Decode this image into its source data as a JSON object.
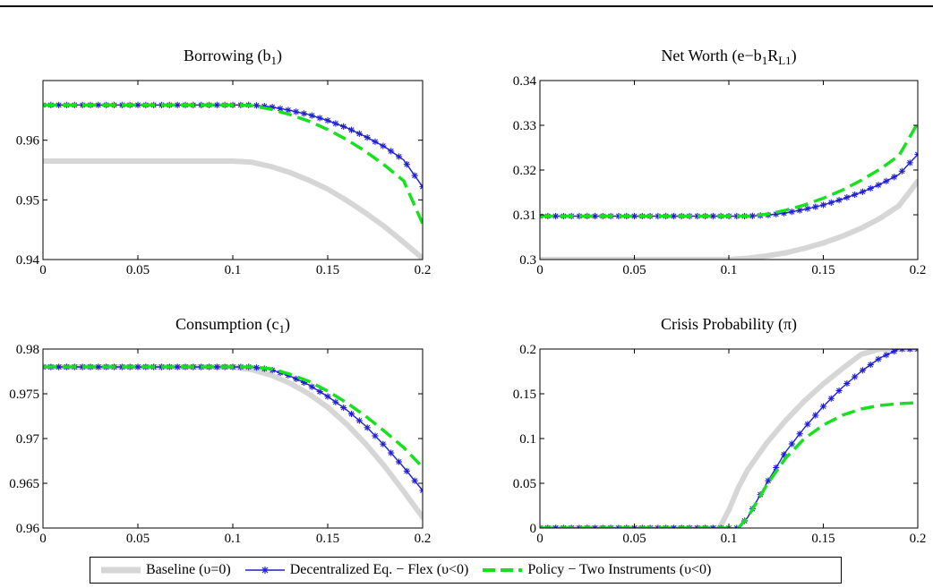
{
  "colors": {
    "baseline": "#d6d6d6",
    "decentralized": "#1f1fd6",
    "policy": "#16e11c"
  },
  "chart_data": [
    {
      "type": "line",
      "title": "Borrowing (b1)",
      "title_parts": [
        "Borrowing (b",
        "1",
        ")"
      ],
      "xlim": [
        0,
        0.2
      ],
      "ylim": [
        0.94,
        0.97
      ],
      "xticks": [
        "0",
        "0.05",
        "0.1",
        "0.15",
        "0.2"
      ],
      "yticks": [
        "0.94",
        "0.95",
        "0.96"
      ],
      "ytick_values": [
        0.94,
        0.95,
        0.96
      ],
      "x": [
        0,
        0.02,
        0.04,
        0.06,
        0.08,
        0.1,
        0.11,
        0.12,
        0.13,
        0.14,
        0.15,
        0.16,
        0.17,
        0.18,
        0.19,
        0.2
      ],
      "series": [
        {
          "name": "Baseline (υ=0)",
          "values": [
            0.9565,
            0.9565,
            0.9565,
            0.9565,
            0.9565,
            0.9565,
            0.9563,
            0.9556,
            0.9546,
            0.9533,
            0.9518,
            0.9499,
            0.9478,
            0.9455,
            0.9429,
            0.9402
          ]
        },
        {
          "name": "Decentralized Eq. − Flex (υ<0)",
          "values": [
            0.9659,
            0.9659,
            0.9659,
            0.9659,
            0.9659,
            0.9659,
            0.9659,
            0.9656,
            0.965,
            0.9643,
            0.9633,
            0.9621,
            0.9606,
            0.9589,
            0.9567,
            0.9522
          ]
        },
        {
          "name": "Policy − Two Instruments (υ<0)",
          "values": [
            0.9659,
            0.9659,
            0.9659,
            0.9659,
            0.9659,
            0.9659,
            0.9658,
            0.9652,
            0.9643,
            0.9632,
            0.9618,
            0.9601,
            0.9581,
            0.9558,
            0.9532,
            0.946
          ]
        }
      ]
    },
    {
      "type": "line",
      "title": "Net Worth (e−b1RL1)",
      "title_parts": [
        "Net Worth (e−b",
        "1",
        "R",
        "L1",
        ")"
      ],
      "xlim": [
        0,
        0.2
      ],
      "ylim": [
        0.3,
        0.34
      ],
      "xticks": [
        "0",
        "0.05",
        "0.1",
        "0.15",
        "0.2"
      ],
      "yticks": [
        "0.3",
        "0.31",
        "0.32",
        "0.33",
        "0.34"
      ],
      "ytick_values": [
        0.3,
        0.31,
        0.32,
        0.33,
        0.34
      ],
      "x": [
        0,
        0.02,
        0.04,
        0.06,
        0.08,
        0.1,
        0.11,
        0.12,
        0.13,
        0.14,
        0.15,
        0.16,
        0.17,
        0.18,
        0.19,
        0.2
      ],
      "series": [
        {
          "name": "Baseline (υ=0)",
          "values": [
            0.3,
            0.3,
            0.3,
            0.3,
            0.3,
            0.3,
            0.3003,
            0.3008,
            0.3015,
            0.3025,
            0.3037,
            0.3052,
            0.307,
            0.3092,
            0.312,
            0.3175
          ]
        },
        {
          "name": "Decentralized Eq. − Flex (υ<0)",
          "values": [
            0.3097,
            0.3097,
            0.3097,
            0.3097,
            0.3097,
            0.3097,
            0.3097,
            0.3099,
            0.3104,
            0.3112,
            0.3122,
            0.3135,
            0.315,
            0.3168,
            0.319,
            0.3235
          ]
        },
        {
          "name": "Policy − Two Instruments (υ<0)",
          "values": [
            0.3097,
            0.3097,
            0.3097,
            0.3097,
            0.3097,
            0.3097,
            0.3097,
            0.3101,
            0.311,
            0.3122,
            0.3137,
            0.3155,
            0.3177,
            0.3202,
            0.3232,
            0.3305
          ]
        }
      ]
    },
    {
      "type": "line",
      "title": "Consumption (c1)",
      "title_parts": [
        "Consumption (c",
        "1",
        ")"
      ],
      "xlim": [
        0,
        0.2
      ],
      "ylim": [
        0.96,
        0.98
      ],
      "xticks": [
        "0",
        "0.05",
        "0.1",
        "0.15",
        "0.2"
      ],
      "yticks": [
        "0.96",
        "0.965",
        "0.97",
        "0.975",
        "0.98"
      ],
      "ytick_values": [
        0.96,
        0.965,
        0.97,
        0.975,
        0.98
      ],
      "x": [
        0,
        0.02,
        0.04,
        0.06,
        0.08,
        0.1,
        0.11,
        0.12,
        0.13,
        0.14,
        0.15,
        0.16,
        0.17,
        0.18,
        0.19,
        0.2
      ],
      "series": [
        {
          "name": "Baseline (υ=0)",
          "values": [
            0.978,
            0.978,
            0.978,
            0.978,
            0.978,
            0.978,
            0.9777,
            0.9771,
            0.9762,
            0.975,
            0.9735,
            0.9716,
            0.9694,
            0.9669,
            0.9641,
            0.9612
          ]
        },
        {
          "name": "Decentralized Eq. − Flex (υ<0)",
          "values": [
            0.978,
            0.978,
            0.978,
            0.978,
            0.978,
            0.978,
            0.978,
            0.9777,
            0.977,
            0.976,
            0.9747,
            0.9732,
            0.9714,
            0.9692,
            0.9668,
            0.9642
          ]
        },
        {
          "name": "Policy − Two Instruments (υ<0)",
          "values": [
            0.978,
            0.978,
            0.978,
            0.978,
            0.978,
            0.978,
            0.978,
            0.9778,
            0.9772,
            0.9764,
            0.9753,
            0.974,
            0.9725,
            0.9708,
            0.969,
            0.9668
          ]
        }
      ]
    },
    {
      "type": "line",
      "title": "Crisis Probability (π)",
      "title_parts": [
        "Crisis Probability (π)"
      ],
      "xlim": [
        0,
        0.2
      ],
      "ylim": [
        0,
        0.2
      ],
      "xticks": [
        "0",
        "0.05",
        "0.1",
        "0.15",
        "0.2"
      ],
      "yticks": [
        "0",
        "0.05",
        "0.1",
        "0.15",
        "0.2"
      ],
      "ytick_values": [
        0,
        0.05,
        0.1,
        0.15,
        0.2
      ],
      "x": [
        0,
        0.02,
        0.04,
        0.06,
        0.08,
        0.095,
        0.1,
        0.105,
        0.11,
        0.12,
        0.13,
        0.14,
        0.15,
        0.16,
        0.17,
        0.18,
        0.19,
        0.2
      ],
      "series": [
        {
          "name": "Baseline (υ=0)",
          "values": [
            0,
            0,
            0,
            0,
            0,
            0,
            0.02,
            0.045,
            0.065,
            0.095,
            0.12,
            0.142,
            0.161,
            0.178,
            0.194,
            0.2,
            0.2,
            0.2
          ]
        },
        {
          "name": "Decentralized Eq. − Flex (υ<0)",
          "values": [
            0,
            0,
            0,
            0,
            0,
            0,
            0,
            0,
            0.012,
            0.05,
            0.085,
            0.112,
            0.136,
            0.157,
            0.175,
            0.19,
            0.2,
            0.2
          ]
        },
        {
          "name": "Policy − Two Instruments (υ<0)",
          "values": [
            0,
            0,
            0,
            0,
            0,
            0,
            0,
            0,
            0.012,
            0.048,
            0.078,
            0.1,
            0.115,
            0.126,
            0.133,
            0.137,
            0.139,
            0.14
          ]
        }
      ]
    }
  ],
  "legend": {
    "baseline_label": "Baseline (υ=0)",
    "decentralized_label": "Decentralized Eq. − Flex (υ<0)",
    "policy_label": "Policy − Two Instruments (υ<0)"
  }
}
